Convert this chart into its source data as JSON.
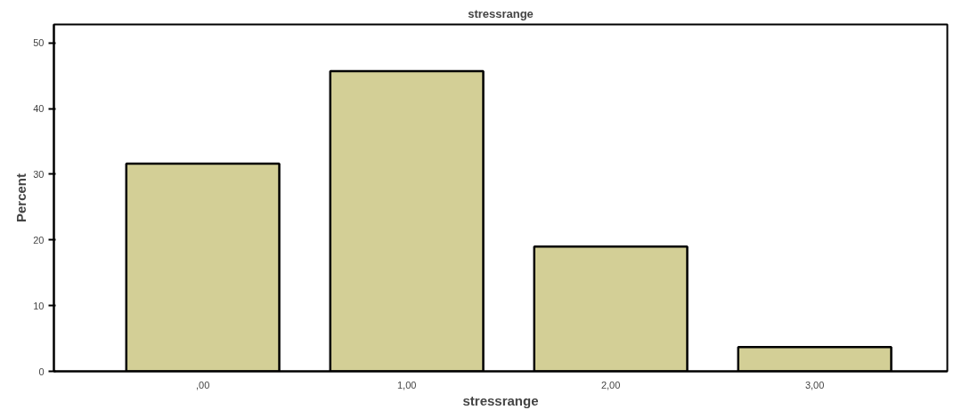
{
  "chart_data": {
    "type": "bar",
    "title": "stressrange",
    "xlabel": "stressrange",
    "ylabel": "Percent",
    "categories": [
      ",00",
      "1,00",
      "2,00",
      "3,00"
    ],
    "values": [
      31.6,
      45.7,
      19.0,
      3.7
    ],
    "color": "#d3cf96",
    "ylim": [
      0,
      52.8
    ],
    "yticks": [
      0,
      10,
      20,
      30,
      40,
      50
    ],
    "grid": false
  }
}
